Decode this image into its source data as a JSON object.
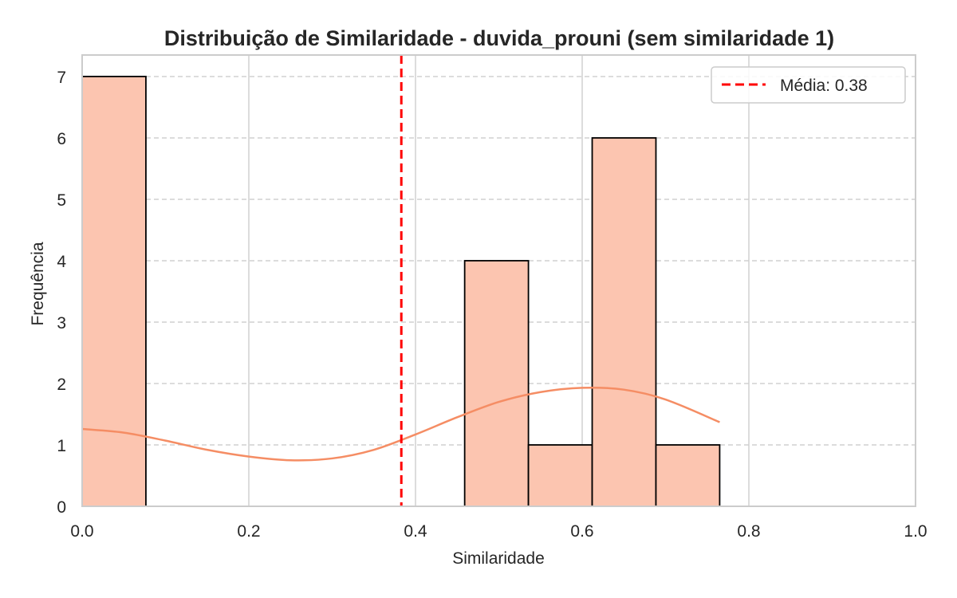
{
  "chart_data": {
    "type": "bar",
    "title": "Distribuição de Similaridade - duvida_prouni (sem similaridade 1)",
    "xlabel": "Similaridade",
    "ylabel": "Frequência",
    "xlim": [
      0,
      1.0
    ],
    "ylim": [
      0,
      7.35
    ],
    "xticks": [
      "0.0",
      "0.2",
      "0.4",
      "0.6",
      "0.8",
      "1.0"
    ],
    "xtick_values": [
      0,
      0.2,
      0.4,
      0.6,
      0.8,
      1.0
    ],
    "yticks": [
      "0",
      "1",
      "2",
      "3",
      "4",
      "5",
      "6",
      "7"
    ],
    "ytick_values": [
      0,
      1,
      2,
      3,
      4,
      5,
      6,
      7
    ],
    "bins": [
      {
        "x0": 0.0,
        "x1": 0.0765,
        "count": 7
      },
      {
        "x0": 0.0765,
        "x1": 0.153,
        "count": 0
      },
      {
        "x0": 0.153,
        "x1": 0.2295,
        "count": 0
      },
      {
        "x0": 0.2295,
        "x1": 0.306,
        "count": 0
      },
      {
        "x0": 0.306,
        "x1": 0.3825,
        "count": 0
      },
      {
        "x0": 0.3825,
        "x1": 0.459,
        "count": 0
      },
      {
        "x0": 0.459,
        "x1": 0.5355,
        "count": 4
      },
      {
        "x0": 0.5355,
        "x1": 0.612,
        "count": 1
      },
      {
        "x0": 0.612,
        "x1": 0.6885,
        "count": 6
      },
      {
        "x0": 0.6885,
        "x1": 0.765,
        "count": 1
      }
    ],
    "kde_curve": {
      "x": [
        0.0,
        0.05,
        0.1,
        0.15,
        0.2,
        0.25,
        0.3,
        0.35,
        0.4,
        0.45,
        0.5,
        0.55,
        0.6,
        0.65,
        0.7,
        0.765
      ],
      "y": [
        1.26,
        1.2,
        1.07,
        0.92,
        0.81,
        0.75,
        0.78,
        0.92,
        1.17,
        1.45,
        1.7,
        1.86,
        1.93,
        1.9,
        1.74,
        1.37
      ]
    },
    "mean_line": {
      "x": 0.383,
      "label": "Média: 0.38"
    },
    "legend": {
      "position": "top-right",
      "entries": [
        "Média: 0.38"
      ]
    },
    "grid": true,
    "colors": {
      "bar_fill": "#fcc5b0",
      "bar_edge": "#000000",
      "kde": "#f58d64",
      "mean_line": "#ff0000",
      "grid": "#d0d0d0",
      "spine": "#cccccc",
      "text": "#262626"
    }
  }
}
